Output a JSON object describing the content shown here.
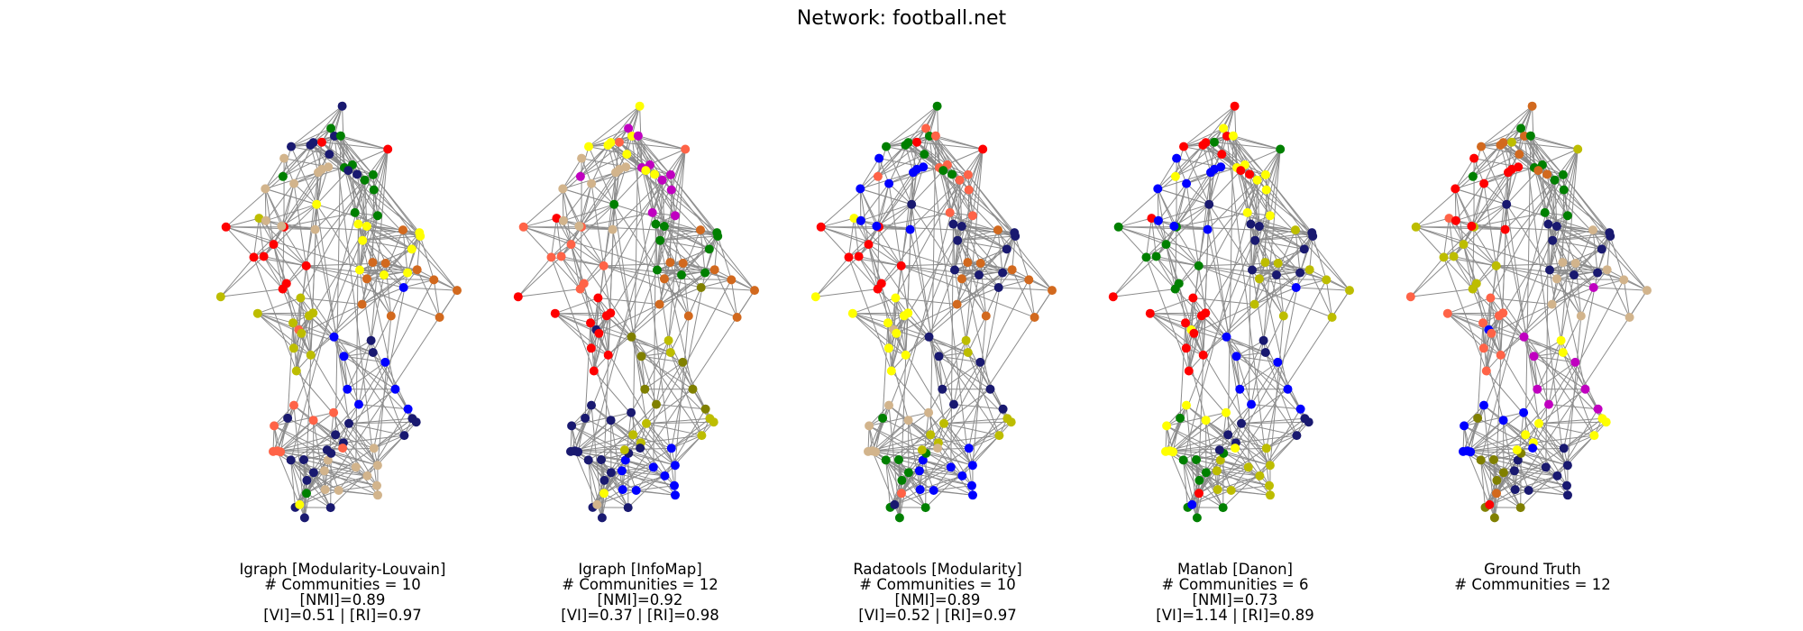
{
  "title": "Network: football.net",
  "panels": [
    {
      "method": "Igraph [Modularity-Louvain]",
      "communities": "# Communities = 10",
      "nmi": "[NMI]=0.89",
      "vi_ri": "[VI]=0.51 | [RI]=0.97",
      "palette": [
        "#191970",
        "#d2b48c",
        "#008000",
        "#ffff00",
        "#ff0000",
        "#d2691e",
        "#bdbd00",
        "#0000ff",
        "#ff6347",
        "#191970"
      ]
    },
    {
      "method": "Igraph [InfoMap]",
      "communities": "# Communities = 12",
      "nmi": "[NMI]=0.92",
      "vi_ri": "[VI]=0.37 | [RI]=0.98",
      "palette": [
        "#bdbd00",
        "#191970",
        "#0000ff",
        "#ffff00",
        "#d2b48c",
        "#c000c0",
        "#008000",
        "#ff6347",
        "#d2691e",
        "#ff0000",
        "#808000",
        "#191970"
      ]
    },
    {
      "method": "Radatools [Modularity]",
      "communities": "# Communities = 10",
      "nmi": "[NMI]=0.89",
      "vi_ri": "[VI]=0.52 | [RI]=0.97",
      "palette": [
        "#ff0000",
        "#d2691e",
        "#ffff00",
        "#191970",
        "#d2b48c",
        "#bdbd00",
        "#008000",
        "#0000ff",
        "#ff6347",
        "#191970"
      ]
    },
    {
      "method": "Matlab [Danon]",
      "communities": "# Communities = 6",
      "nmi": "[NMI]=0.73",
      "vi_ri": "[VI]=1.14 | [RI]=0.89",
      "palette": [
        "#191970",
        "#008000",
        "#bdbd00",
        "#ff0000",
        "#0000ff",
        "#ffff00"
      ]
    },
    {
      "method": "Ground Truth",
      "communities": "# Communities = 12",
      "palette": [
        "#d2691e",
        "#ff0000",
        "#008000",
        "#191970",
        "#bdbd00",
        "#d2b48c",
        "#ff6347",
        "#c000c0",
        "#0000ff",
        "#ffff00",
        "#808000",
        "#191970"
      ]
    }
  ]
}
